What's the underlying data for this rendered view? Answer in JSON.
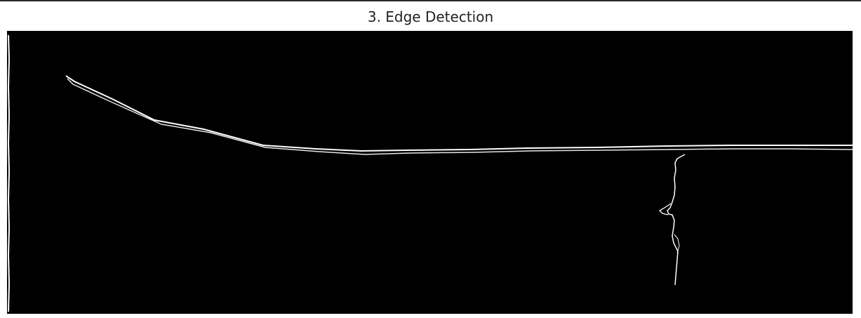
{
  "figure": {
    "title": "3. Edge Detection"
  },
  "image": {
    "background_color": "#000000",
    "edge_color": "#ffffff"
  }
}
